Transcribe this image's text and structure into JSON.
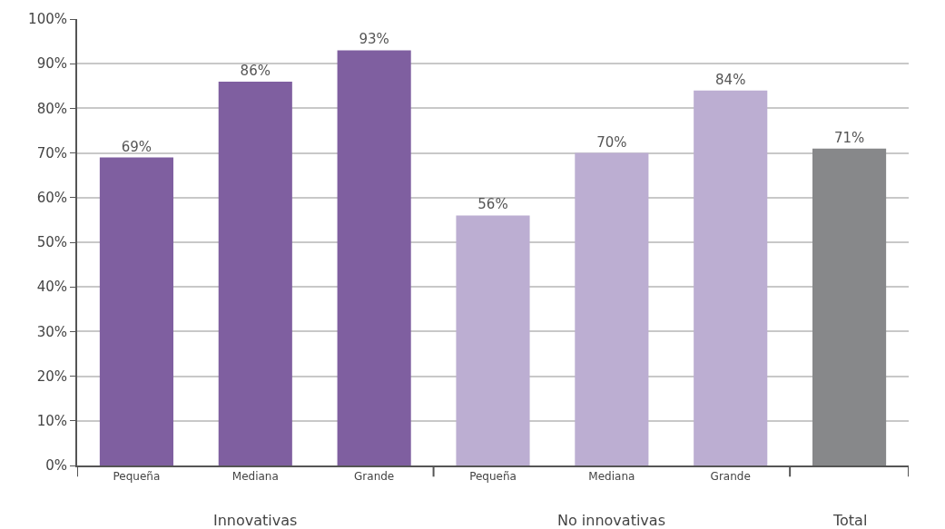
{
  "chart_data": {
    "type": "bar",
    "categories": [
      "Pequeña",
      "Mediana",
      "Grande",
      "Pequeña",
      "Mediana",
      "Grande",
      null
    ],
    "values": [
      69,
      86,
      93,
      56,
      70,
      84,
      71
    ],
    "colors": [
      "#7f5fa0",
      "#7f5fa0",
      "#7f5fa0",
      "#bcaed2",
      "#bcaed2",
      "#bcaed2",
      "#87888a"
    ],
    "value_labels": [
      "69%",
      "86%",
      "93%",
      "56%",
      "70%",
      "84%",
      "71%"
    ],
    "ylim": [
      0,
      100
    ],
    "yticks": [
      {
        "value": 0,
        "label": "0%"
      },
      {
        "value": 10,
        "label": "10%"
      },
      {
        "value": 20,
        "label": "20%"
      },
      {
        "value": 30,
        "label": "30%"
      },
      {
        "value": 40,
        "label": "40%"
      },
      {
        "value": 50,
        "label": "50%"
      },
      {
        "value": 60,
        "label": "60%"
      },
      {
        "value": 70,
        "label": "70%"
      },
      {
        "value": 80,
        "label": "80%"
      },
      {
        "value": 90,
        "label": "90%"
      },
      {
        "value": 100,
        "label": "100%"
      }
    ],
    "grid": "y",
    "annotations": [
      "Innovativas",
      "No innovativas",
      "Total"
    ]
  }
}
